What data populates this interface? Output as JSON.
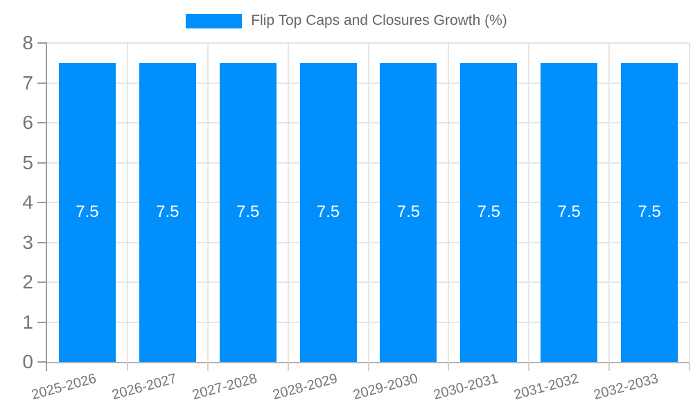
{
  "chart_data": {
    "type": "bar",
    "title": "Flip Top Caps and Closures Growth (%)",
    "categories": [
      "2025-2026",
      "2026-2027",
      "2027-2028",
      "2028-2029",
      "2029-2030",
      "2030-2031",
      "2031-2032",
      "2032-2033"
    ],
    "series": [
      {
        "name": "Flip Top Caps and Closures Growth (%)",
        "values": [
          7.5,
          7.5,
          7.5,
          7.5,
          7.5,
          7.5,
          7.5,
          7.5
        ]
      }
    ],
    "value_labels": [
      "7.5",
      "7.5",
      "7.5",
      "7.5",
      "7.5",
      "7.5",
      "7.5",
      "7.5"
    ],
    "xlabel": "",
    "ylabel": "",
    "ylim": [
      0,
      8
    ],
    "y_ticks": [
      0,
      1,
      2,
      3,
      4,
      5,
      6,
      7,
      8
    ],
    "grid": true,
    "legend_position": "top",
    "colors": {
      "bar": "#008FFB",
      "bar_label": "#ffffff",
      "axis_text": "#757575",
      "legend_text": "#666666",
      "gridline": "#e6e6e6",
      "axis_line": "#9b9b9b",
      "bottom_axis_line": "#b3b3b3",
      "minor_tick": "#d0d0d0"
    }
  }
}
